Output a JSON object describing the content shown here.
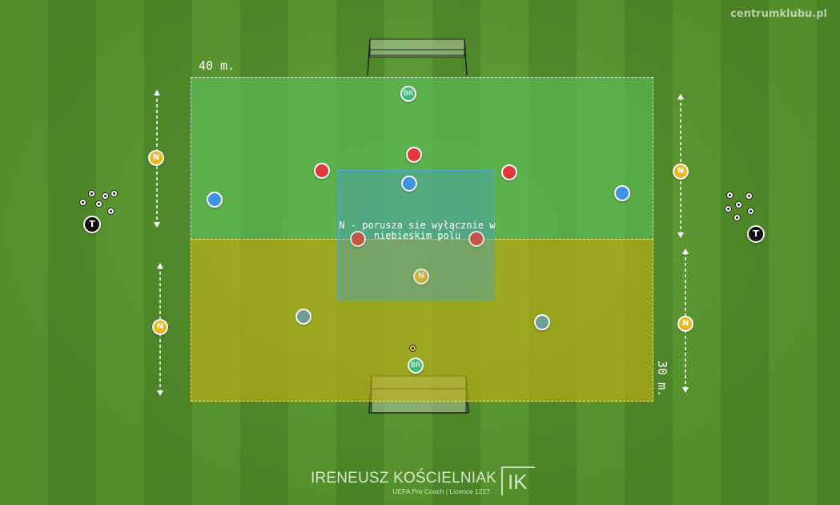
{
  "watermark": "centrumklubu.pl",
  "dimensions": {
    "width_label": "40 m.",
    "height_label": "30 m."
  },
  "zones": {
    "blue_zone_text": "N - porusza sie wyłącznie w niebieskim polu",
    "colors": {
      "green": "#5cbe58",
      "yellow": "#c4b214",
      "blue": "#46a0c8"
    }
  },
  "labels": {
    "neutral": "N",
    "goalkeeper": "BR",
    "coach": "T"
  },
  "team_colors": {
    "red": "#e23a3a",
    "blue": "#3b95e0",
    "teal": "#6b9f94",
    "neutral": "#e8b722",
    "goalkeeper": "#3dbb76",
    "coach": "#111111"
  },
  "author": {
    "name": "IRENEUSZ KOŚCIELNIAK",
    "subtitle": "UEFA Pro Coach   |   Licence 1227",
    "logo": "IK"
  }
}
